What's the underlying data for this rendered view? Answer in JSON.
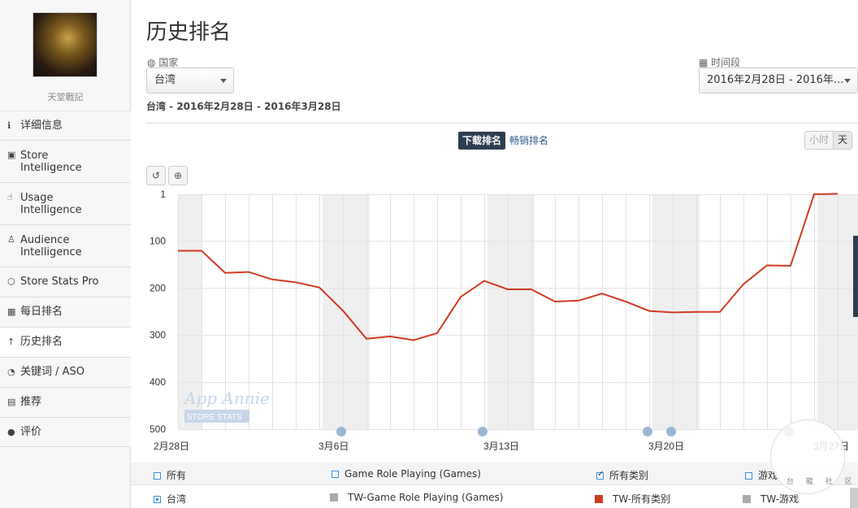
{
  "sidebar": {
    "app_name": "天堂戰記",
    "items": [
      {
        "icon": "info-icon",
        "glyph": "ℹ",
        "label": "详细信息"
      },
      {
        "icon": "store-icon",
        "glyph": "▣",
        "label": "Store\nIntelligence"
      },
      {
        "icon": "usage-icon",
        "glyph": "☝",
        "label": "Usage\nIntelligence"
      },
      {
        "icon": "audience-icon",
        "glyph": "♙",
        "label": "Audience\nIntelligence"
      },
      {
        "icon": "store-stats-icon",
        "glyph": "⬡",
        "label": "Store Stats Pro"
      },
      {
        "icon": "calendar-icon",
        "glyph": "▦",
        "label": "每日排名"
      },
      {
        "icon": "arrow-up-icon",
        "glyph": "↑",
        "label": "历史排名"
      },
      {
        "icon": "keyword-icon",
        "glyph": "◔",
        "label": "关键词 / ASO"
      },
      {
        "icon": "bookmark-icon",
        "glyph": "▤",
        "label": "推荐"
      },
      {
        "icon": "comment-icon",
        "glyph": "●",
        "label": "评价"
      }
    ]
  },
  "page": {
    "title": "历史排名",
    "country_label": "国家",
    "country_value": "台湾",
    "period_label": "时间段",
    "period_value": "2016年2月28日 - 2016年...",
    "range_text": "台湾 - 2016年2月28日 - 2016年3月28日"
  },
  "chart_controls": {
    "tab_download": "下载排名",
    "tab_grossing": "畅销排名",
    "btn_hour": "小时",
    "btn_day": "天",
    "reset_icon": "↺",
    "zoom_icon": "⊕"
  },
  "watermark": {
    "text": "App Annie",
    "sub": "STORE STATS"
  },
  "chart_data": {
    "type": "line",
    "ylim": [
      1,
      500
    ],
    "y_inverted": true,
    "y_ticks": [
      "1",
      "100",
      "200",
      "300",
      "400",
      "500"
    ],
    "x_labels": [
      "2月28日",
      "3月6日",
      "3月13日",
      "3月20日",
      "3月27日"
    ],
    "series": [
      {
        "name": "TW-所有类别",
        "color": "#d13a22",
        "x": [
          "2016-02-28",
          "2016-02-29",
          "2016-03-01",
          "2016-03-02",
          "2016-03-03",
          "2016-03-04",
          "2016-03-05",
          "2016-03-06",
          "2016-03-07",
          "2016-03-08",
          "2016-03-09",
          "2016-03-10",
          "2016-03-11",
          "2016-03-12",
          "2016-03-13",
          "2016-03-14",
          "2016-03-15",
          "2016-03-16",
          "2016-03-17",
          "2016-03-18",
          "2016-03-19",
          "2016-03-20",
          "2016-03-21",
          "2016-03-22",
          "2016-03-23",
          "2016-03-24",
          "2016-03-25",
          "2016-03-26",
          "2016-03-27"
        ],
        "values": [
          121,
          121,
          168,
          166,
          182,
          188,
          199,
          248,
          308,
          303,
          311,
          296,
          219,
          185,
          203,
          203,
          229,
          227,
          212,
          229,
          249,
          252,
          251,
          251,
          192,
          152,
          153,
          1,
          0
        ]
      }
    ]
  },
  "legend": {
    "row1": [
      {
        "label": "所有",
        "checked": false
      },
      {
        "label": "Game Role Playing (Games)",
        "checked": false
      },
      {
        "label": "所有类别",
        "checked": true
      },
      {
        "label": "游戏",
        "checked": false
      }
    ],
    "row2": [
      {
        "label": "台湾",
        "radio": true
      },
      {
        "label": "TW-Game Role Playing (Games)",
        "color": "#aaaaaa"
      },
      {
        "label": "TW-所有类别",
        "color": "#d13a22"
      },
      {
        "label": "TW-游戏",
        "color": "#aaaaaa"
      }
    ]
  },
  "community": {
    "text": "台 龍 社 区"
  }
}
